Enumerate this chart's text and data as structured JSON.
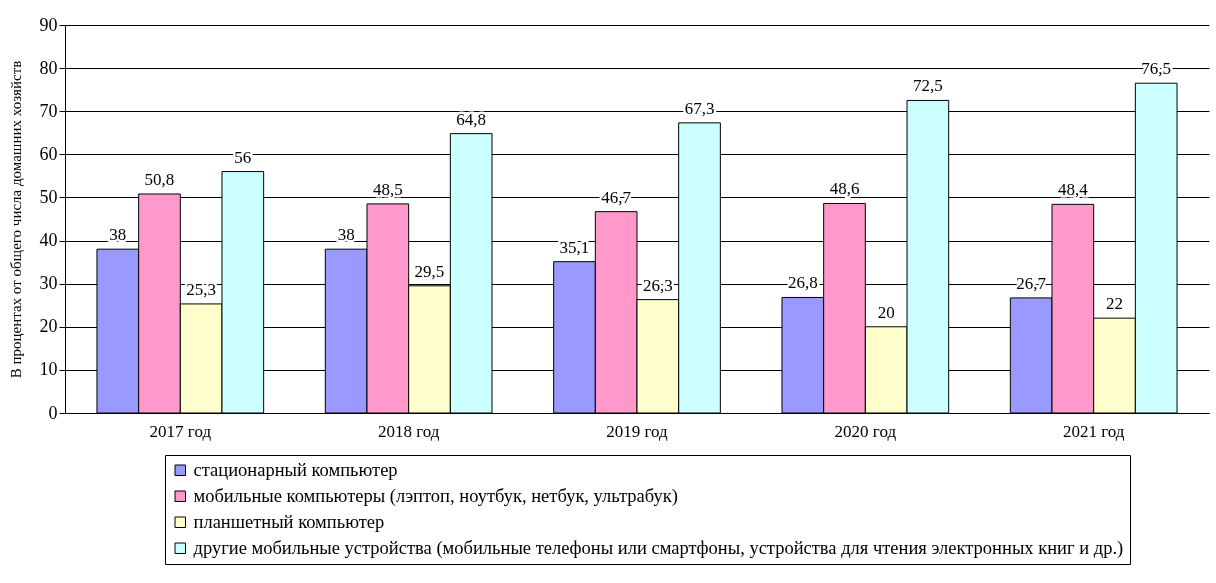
{
  "chart_data": {
    "type": "bar",
    "ylabel": "В процентах от общего числа домашних хозяйств",
    "categories": [
      "2017 год",
      "2018 год",
      "2019 год",
      "2020 год",
      "2021 год"
    ],
    "series": [
      {
        "name": "стационарный компьютер",
        "color": "#9999ff",
        "values": [
          38,
          38,
          35.1,
          26.8,
          26.7
        ],
        "value_labels": [
          "38",
          "38",
          "35,1",
          "26,8",
          "26,7"
        ]
      },
      {
        "name": "мобильные компьютеры (лэптоп, ноутбук, нетбук, ультрабук)",
        "color": "#ff99cc",
        "values": [
          50.8,
          48.5,
          46.7,
          48.6,
          48.4
        ],
        "value_labels": [
          "50,8",
          "48,5",
          "46,7",
          "48,6",
          "48,4"
        ]
      },
      {
        "name": "планшетный компьютер",
        "color": "#ffffcc",
        "values": [
          25.3,
          29.5,
          26.3,
          20,
          22
        ],
        "value_labels": [
          "25,3",
          "29,5",
          "26,3",
          "20",
          "22"
        ]
      },
      {
        "name": "другие мобильные устройства (мобильные телефоны или смартфоны, устройства для чтения электронных книг и др.)",
        "color": "#ccffff",
        "values": [
          56,
          64.8,
          67.3,
          72.5,
          76.5
        ],
        "value_labels": [
          "56",
          "64,8",
          "67,3",
          "72,5",
          "76,5"
        ]
      }
    ],
    "ylim": [
      0,
      90
    ],
    "yticks": [
      0,
      10,
      20,
      30,
      40,
      50,
      60,
      70,
      80,
      90
    ],
    "grid": "y",
    "legend": "bottom"
  }
}
